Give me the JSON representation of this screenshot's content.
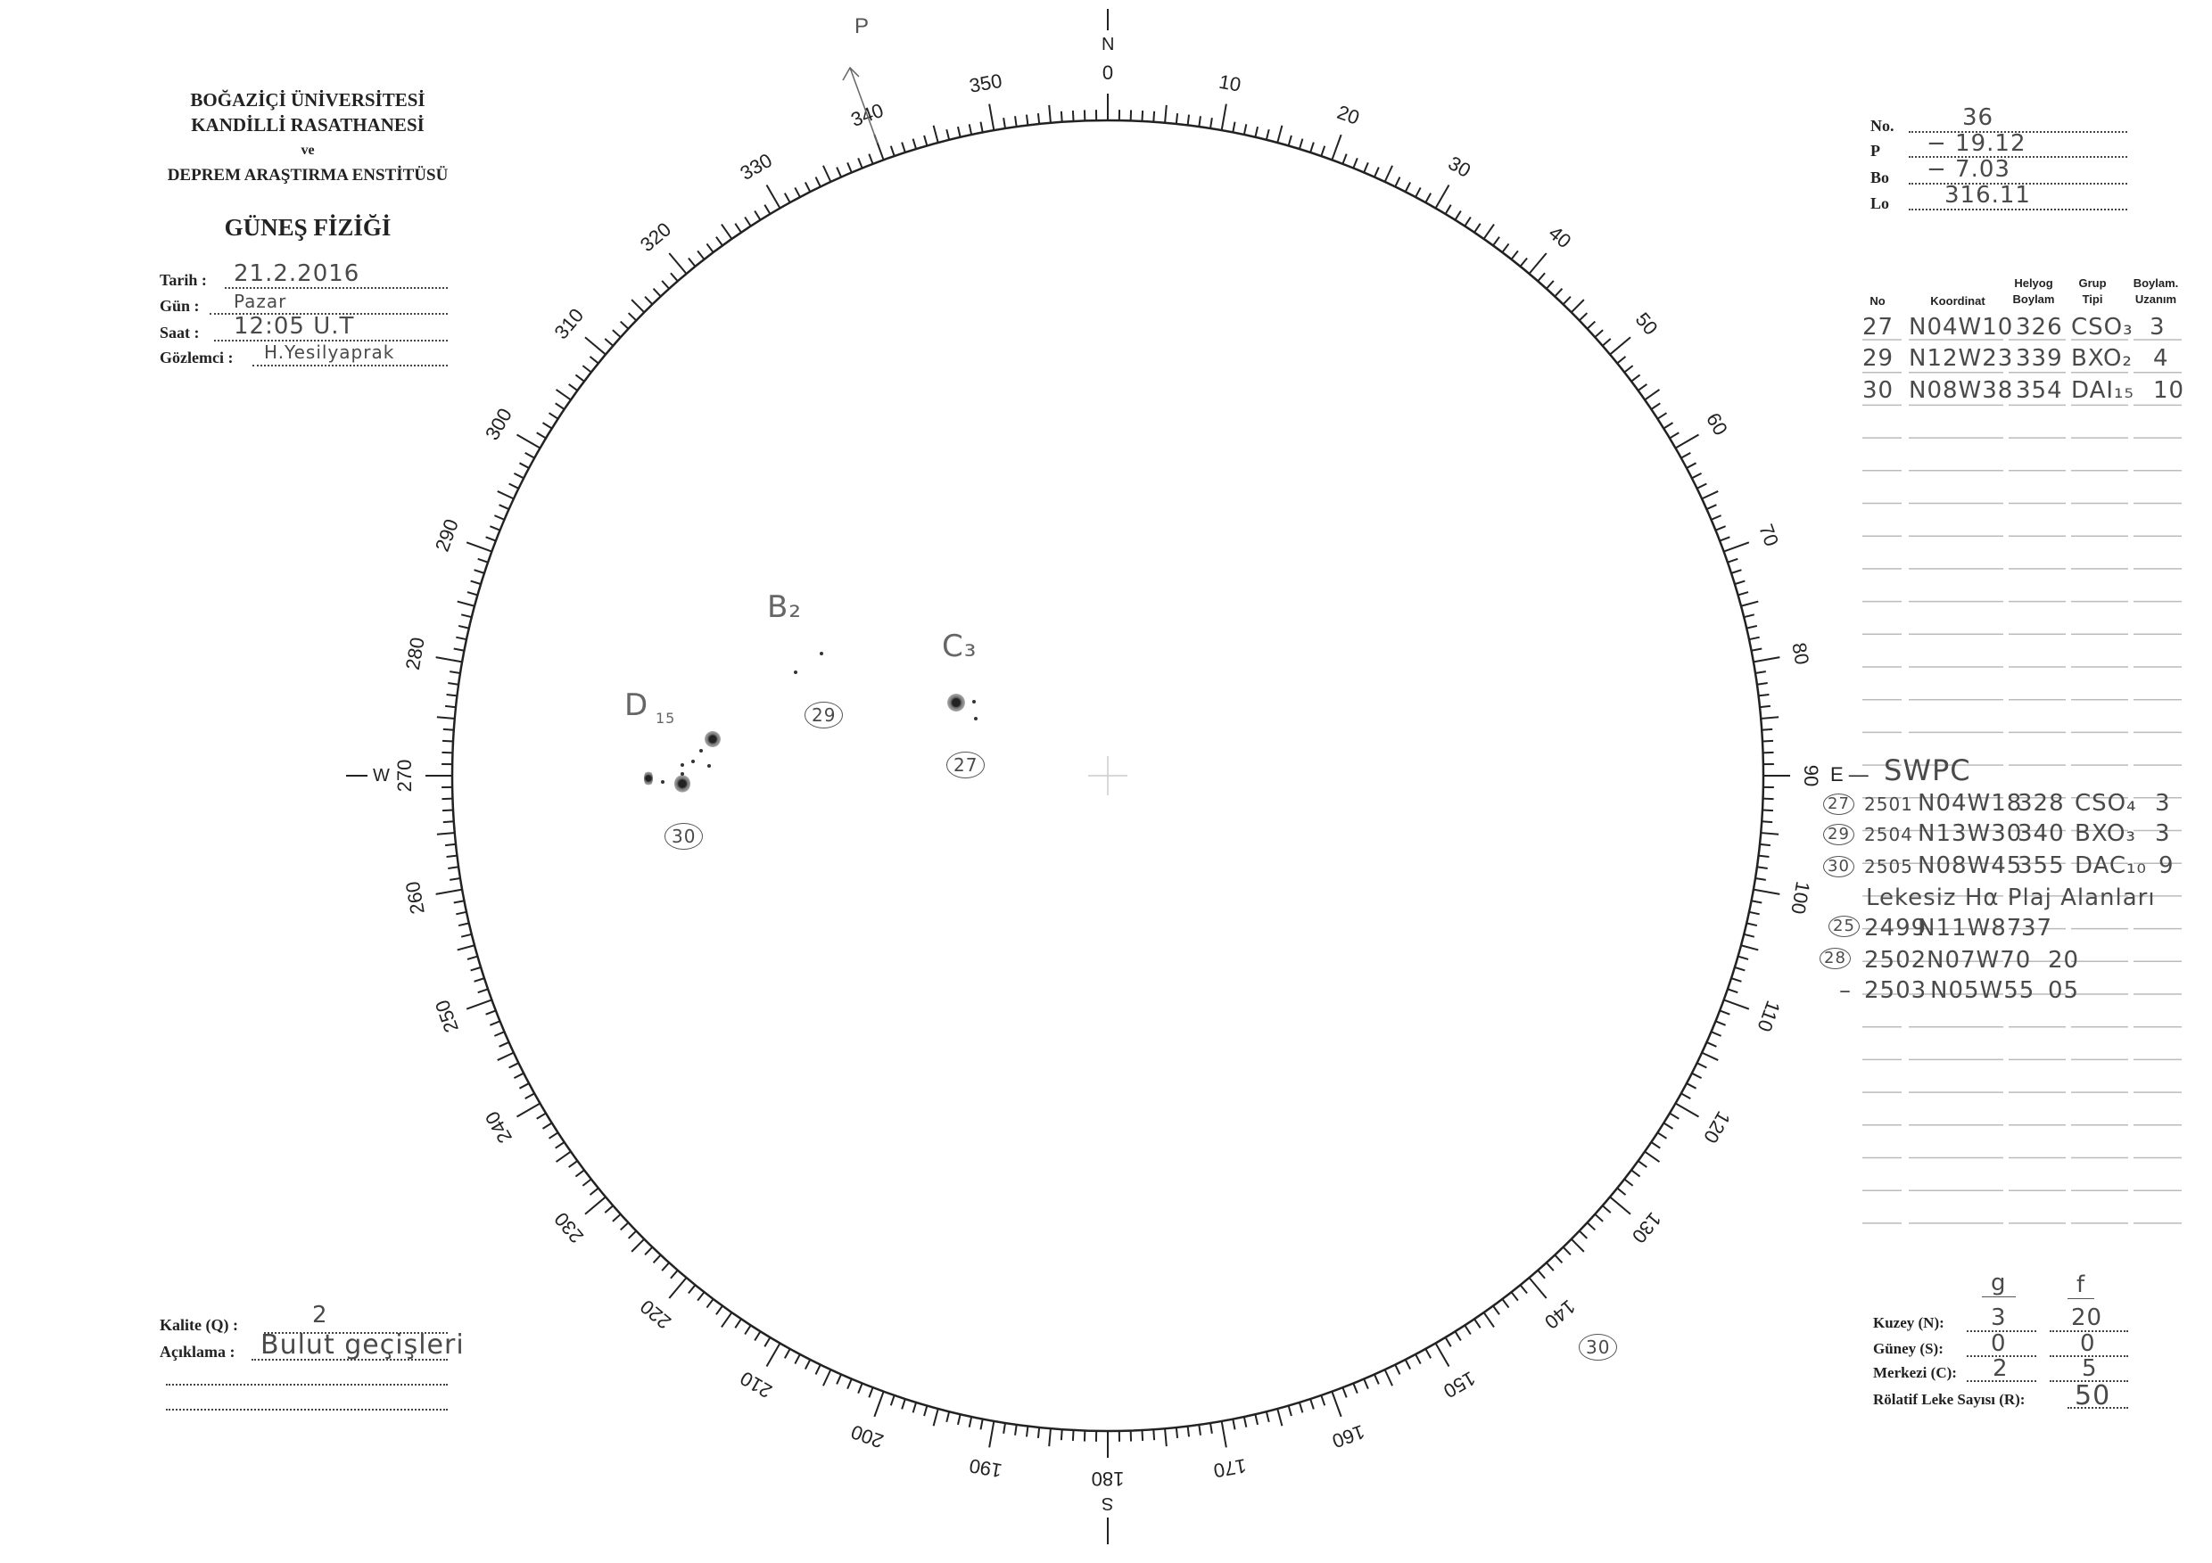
{
  "header": {
    "line1": "BOĞAZİÇİ ÜNİVERSİTESİ",
    "line2": "KANDİLLİ RASATHANESİ",
    "line3": "ve",
    "line4": "DEPREM ARAŞTIRMA ENSTİTÜSÜ",
    "title": "GÜNEŞ FİZİĞİ"
  },
  "form": {
    "tarih": {
      "label": "Tarih :",
      "value": "21.2.2016"
    },
    "gun": {
      "label": "Gün :",
      "value": "Pazar"
    },
    "saat": {
      "label": "Saat :",
      "value": "12:05 U.T"
    },
    "gozlemci": {
      "label": "Gözlemci :",
      "value": "H.Yesilyaprak"
    }
  },
  "orientation": {
    "no": {
      "label": "No.",
      "value": "36"
    },
    "p": {
      "label": "P",
      "value": "− 19.12"
    },
    "bo": {
      "label": "Bo",
      "value": "− 7.03"
    },
    "lo": {
      "label": "Lo",
      "value": "316.11"
    }
  },
  "table": {
    "headers": {
      "no": "No",
      "koordinat": "Koordinat",
      "helyog_1": "Helyog",
      "helyog_2": "Boylam",
      "grup_1": "Grup",
      "grup_2": "Tipi",
      "uzanim_1": "Boylam.",
      "uzanim_2": "Uzanım"
    },
    "rows": [
      {
        "no": "27",
        "koordinat": "N04W10",
        "boylam": "326",
        "grup": "CSO₃",
        "uzanim": "3"
      },
      {
        "no": "29",
        "koordinat": "N12W23",
        "boylam": "339",
        "grup": "BXO₂",
        "uzanim": "4"
      },
      {
        "no": "30",
        "koordinat": "N08W38",
        "boylam": "354",
        "grup": "DAI₁₅",
        "uzanim": "10"
      }
    ]
  },
  "swpc": {
    "title": "SWPC",
    "rows": [
      {
        "marker": "27",
        "noaa": "2501",
        "koordinat": "N04W18",
        "boylam": "328",
        "grup": "CSO₄",
        "uzanim": "3"
      },
      {
        "marker": "29",
        "noaa": "2504",
        "koordinat": "N13W30",
        "boylam": "340",
        "grup": "BXO₃",
        "uzanim": "3"
      },
      {
        "marker": "30",
        "noaa": "2505",
        "koordinat": "N08W45",
        "boylam": "355",
        "grup": "DAC₁₀",
        "uzanim": "9"
      }
    ],
    "plage_title": "Lekesiz Hα Plaj Alanları",
    "plage_rows": [
      {
        "marker": "25",
        "noaa": "2499",
        "koordinat": "N11W87",
        "boylam": "37"
      },
      {
        "marker": "28",
        "noaa": "2502",
        "koordinat": "N07W70",
        "boylam": "20"
      },
      {
        "marker": "–",
        "noaa": "2503",
        "koordinat": "N05W55",
        "boylam": "05"
      }
    ]
  },
  "counts": {
    "g_label": "g",
    "f_label": "f",
    "kuzey": {
      "label": "Kuzey (N):",
      "g": "3",
      "f": "20"
    },
    "guney": {
      "label": "Güney (S):",
      "g": "0",
      "f": "0"
    },
    "merkezi": {
      "label": "Merkezi (C):",
      "g": "2",
      "f": "5"
    },
    "relatif": {
      "label": "Rölatif Leke Sayısı (R):",
      "value": "50"
    }
  },
  "quality": {
    "kalite": {
      "label": "Kalite (Q) :",
      "value": "2"
    },
    "aciklama": {
      "label": "Açıklama :",
      "value": "Bulut geçişleri"
    }
  },
  "disk": {
    "compass": {
      "n": "N",
      "e": "E",
      "s": "S",
      "w": "W",
      "p": "P"
    },
    "scale_labels": [
      "0",
      "10",
      "20",
      "30",
      "40",
      "50",
      "60",
      "70",
      "80",
      "90",
      "100",
      "110",
      "120",
      "130",
      "140",
      "150",
      "160",
      "170",
      "180",
      "190",
      "200",
      "210",
      "220",
      "230",
      "240",
      "250",
      "260",
      "270",
      "280",
      "290",
      "300",
      "310",
      "320",
      "330",
      "340",
      "350"
    ],
    "p_angle_deg": 340,
    "annotations": {
      "b2": "B₂",
      "c3": "C₃",
      "d15_main": "D",
      "d15_sub": "15",
      "g29": "29",
      "g27": "27",
      "g30": "30",
      "g30_limb": "30"
    }
  }
}
